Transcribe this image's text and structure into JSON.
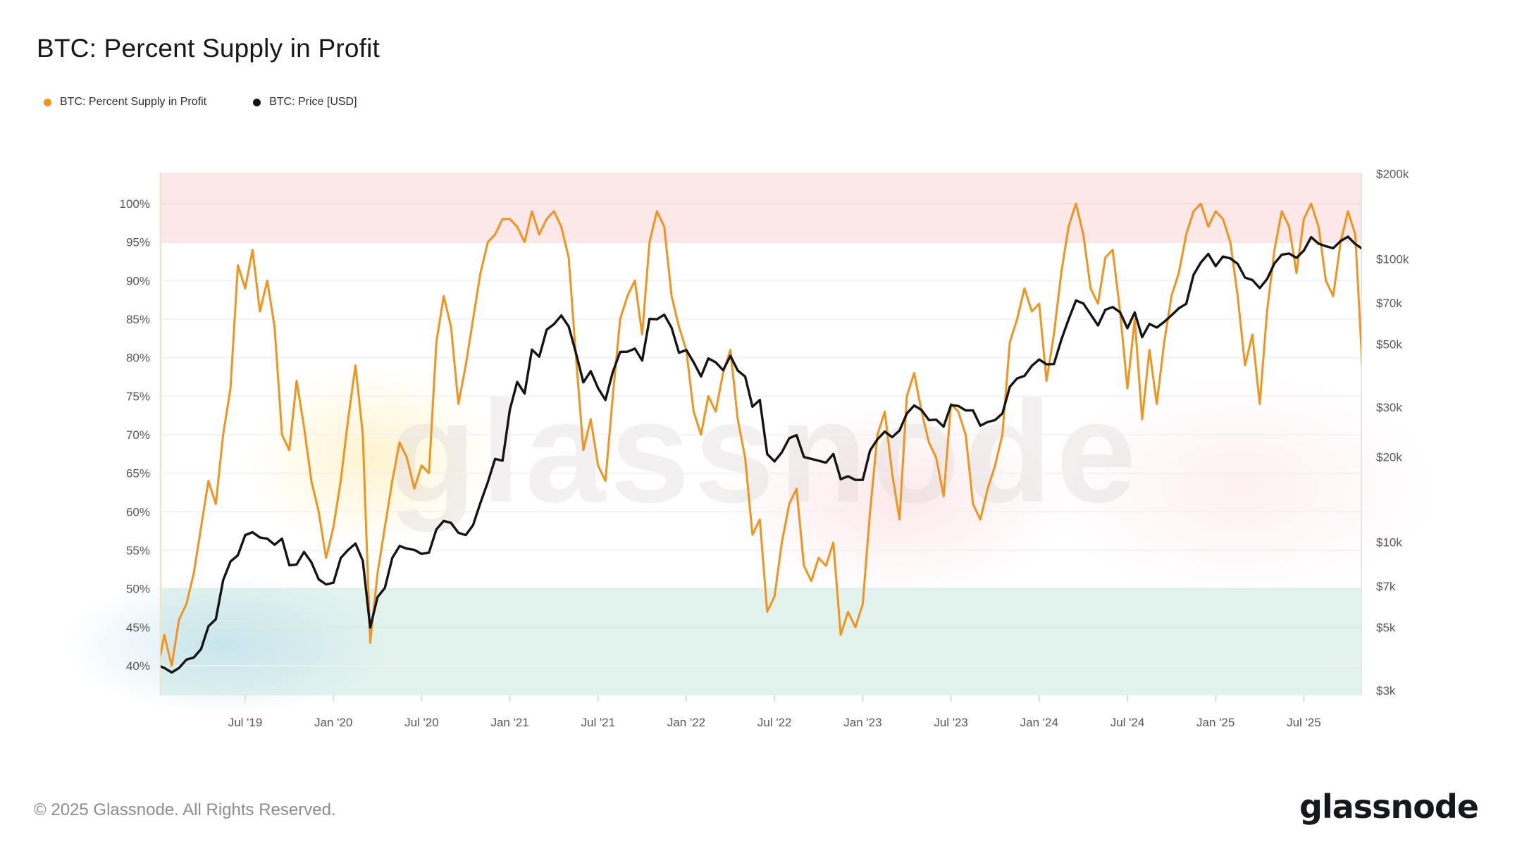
{
  "title": "BTC: Percent Supply in Profit",
  "legend": [
    {
      "label": "BTC: Percent Supply in Profit",
      "color": "#f0931f"
    },
    {
      "label": "BTC: Price [USD]",
      "color": "#141414"
    }
  ],
  "watermark": "glassnode",
  "footer": {
    "copyright": "© 2025 Glassnode. All Rights Reserved.",
    "brand": "glassnode"
  },
  "axes": {
    "left_ticks": [
      {
        "v": 100,
        "label": "100%"
      },
      {
        "v": 95,
        "label": "95%"
      },
      {
        "v": 90,
        "label": "90%"
      },
      {
        "v": 85,
        "label": "85%"
      },
      {
        "v": 80,
        "label": "80%"
      },
      {
        "v": 75,
        "label": "75%"
      },
      {
        "v": 70,
        "label": "70%"
      },
      {
        "v": 65,
        "label": "65%"
      },
      {
        "v": 60,
        "label": "60%"
      },
      {
        "v": 55,
        "label": "55%"
      },
      {
        "v": 50,
        "label": "50%"
      },
      {
        "v": 45,
        "label": "45%"
      },
      {
        "v": 40,
        "label": "40%"
      }
    ],
    "right_ticks": [
      {
        "v": 200000,
        "label": "$200k"
      },
      {
        "v": 100000,
        "label": "$100k"
      },
      {
        "v": 70000,
        "label": "$70k"
      },
      {
        "v": 50000,
        "label": "$50k"
      },
      {
        "v": 30000,
        "label": "$30k"
      },
      {
        "v": 20000,
        "label": "$20k"
      },
      {
        "v": 10000,
        "label": "$10k"
      },
      {
        "v": 7000,
        "label": "$7k"
      },
      {
        "v": 5000,
        "label": "$5k"
      },
      {
        "v": 3000,
        "label": "$3k"
      }
    ],
    "x_ticks": [
      {
        "t": 2019.5,
        "label": "Jul '19"
      },
      {
        "t": 2020.0,
        "label": "Jan '20"
      },
      {
        "t": 2020.5,
        "label": "Jul '20"
      },
      {
        "t": 2021.0,
        "label": "Jan '21"
      },
      {
        "t": 2021.5,
        "label": "Jul '21"
      },
      {
        "t": 2022.0,
        "label": "Jan '22"
      },
      {
        "t": 2022.5,
        "label": "Jul '22"
      },
      {
        "t": 2023.0,
        "label": "Jan '23"
      },
      {
        "t": 2023.5,
        "label": "Jul '23"
      },
      {
        "t": 2024.0,
        "label": "Jan '24"
      },
      {
        "t": 2024.5,
        "label": "Jul '24"
      },
      {
        "t": 2025.0,
        "label": "Jan '25"
      },
      {
        "t": 2025.5,
        "label": "Jul '25"
      }
    ]
  },
  "chart_data": {
    "type": "line",
    "title": "BTC: Percent Supply in Profit",
    "x_axis": {
      "unit": "date",
      "start_year": 2019.0,
      "points_per_year": 24,
      "range_decimal_years": [
        2019.0,
        2025.84
      ],
      "note": "semi-monthly samples"
    },
    "left_axis": {
      "unit": "%",
      "range": [
        36.2,
        104.0
      ],
      "gridline_step": 5,
      "grid": true
    },
    "right_axis": {
      "unit": "USD",
      "scale": "log10",
      "range": [
        2900,
        200000
      ]
    },
    "bands": [
      {
        "axis": "left",
        "from": 95,
        "to": 104,
        "color": "#fce7e9",
        "meaning": "overheated zone >95%"
      },
      {
        "axis": "left",
        "from": 36.2,
        "to": 50,
        "color": "#e2f3ee",
        "meaning": "capitulation zone <50%"
      }
    ],
    "legend_position": "top-left",
    "series": [
      {
        "name": "BTC: Percent Supply in Profit",
        "axis": "left",
        "unit": "%",
        "color": "#f0931f",
        "values": [
          39,
          44,
          40,
          46,
          48,
          52,
          58,
          64,
          61,
          70,
          76,
          92,
          89,
          94,
          86,
          90,
          84,
          70,
          68,
          77,
          71,
          64,
          60,
          54,
          58,
          64,
          72,
          79,
          70,
          43,
          52,
          58,
          64,
          69,
          67,
          63,
          66,
          65,
          82,
          88,
          84,
          74,
          79,
          85,
          91,
          95,
          96,
          98,
          98,
          97,
          95,
          99,
          96,
          98,
          99,
          97,
          93,
          80,
          68,
          72,
          66,
          64,
          75,
          85,
          88,
          90,
          83,
          95,
          99,
          97,
          88,
          84,
          81,
          73,
          70,
          75,
          73,
          78,
          81,
          72,
          67,
          57,
          59,
          47,
          49,
          56,
          61,
          63,
          53,
          51,
          54,
          53,
          56,
          44,
          47,
          45,
          48,
          60,
          70,
          73,
          65,
          59,
          75,
          78,
          73,
          69,
          67,
          62,
          74,
          73,
          70,
          61,
          59,
          63,
          66,
          70,
          82,
          85,
          89,
          86,
          87,
          77,
          83,
          91,
          97,
          100,
          96,
          89,
          87,
          93,
          94,
          86,
          76,
          85,
          72,
          81,
          74,
          82,
          88,
          91,
          96,
          99,
          100,
          97,
          99,
          98,
          95,
          88,
          79,
          83,
          74,
          86,
          94,
          99,
          97,
          91,
          98,
          100,
          97,
          90,
          88,
          95,
          99,
          96,
          78
        ]
      },
      {
        "name": "BTC: Price [USD]",
        "axis": "right",
        "unit": "USD",
        "color": "#141414",
        "values": [
          3690,
          3600,
          3470,
          3600,
          3850,
          3920,
          4200,
          5050,
          5350,
          7350,
          8550,
          9000,
          10600,
          10850,
          10400,
          10300,
          9800,
          10300,
          8300,
          8350,
          9250,
          8500,
          7400,
          7100,
          7200,
          8800,
          9400,
          9900,
          8600,
          5000,
          6400,
          6900,
          8800,
          9700,
          9500,
          9400,
          9100,
          9200,
          11100,
          11900,
          11700,
          10800,
          10600,
          11500,
          13800,
          16300,
          19700,
          19400,
          29400,
          36800,
          33500,
          47900,
          45200,
          56300,
          58900,
          63200,
          57800,
          46500,
          36700,
          40200,
          35000,
          31800,
          39900,
          47000,
          47100,
          48300,
          43800,
          61500,
          61300,
          63600,
          57200,
          46700,
          47700,
          43200,
          38500,
          44600,
          43200,
          40500,
          45500,
          40400,
          38500,
          30100,
          31800,
          20500,
          19300,
          20800,
          23300,
          23900,
          20000,
          19700,
          19400,
          19100,
          20500,
          16700,
          17100,
          16600,
          16600,
          21100,
          23100,
          24600,
          23500,
          24800,
          28500,
          30400,
          29300,
          27000,
          27100,
          25600,
          30500,
          30300,
          29200,
          29200,
          25800,
          26600,
          27000,
          28500,
          35400,
          37900,
          38700,
          42000,
          44200,
          42500,
          42600,
          51800,
          61200,
          71400,
          69700,
          63800,
          58300,
          66200,
          67700,
          64900,
          57000,
          64800,
          53000,
          59000,
          57300,
          60000,
          63300,
          67000,
          69500,
          88000,
          97300,
          104300,
          94400,
          102100,
          100500,
          96200,
          86000,
          84300,
          79000,
          85000,
          96500,
          103700,
          104600,
          101000,
          107100,
          119500,
          113400,
          111000,
          109200,
          115800,
          120000,
          113000,
          108500
        ]
      }
    ]
  },
  "style_colors": {
    "supply_line": "#f0931f",
    "price_line": "#141414",
    "pink_band": "#fce7e9",
    "green_band": "#e2f3ee",
    "gridline": "#f1f1f1",
    "axis_text": "#575757",
    "watermark": "#d9d4d4"
  }
}
